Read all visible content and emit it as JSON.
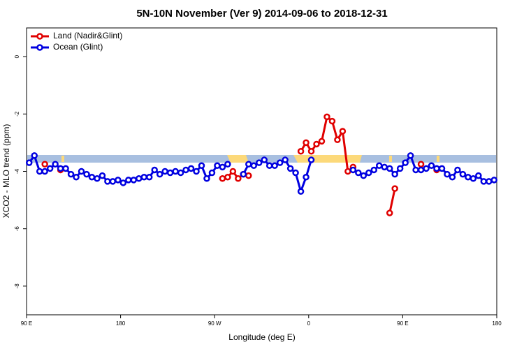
{
  "chart_data": {
    "type": "line",
    "title": "5N-10N November (Ver 9)   2014-09-06 to 2018-12-31",
    "x_label": "Longitude (deg E)",
    "y_label": "XCO2 - MLO trend (ppm)",
    "xlim": [
      90,
      540
    ],
    "ylim": [
      -9,
      1
    ],
    "xticks": [
      {
        "value": 90,
        "label": "90 E"
      },
      180,
      {
        "value": 270,
        "label": "90 W"
      },
      {
        "value": 360,
        "label": "0"
      },
      {
        "value": 450,
        "label": "90 E"
      },
      {
        "value": 540,
        "label": "180"
      }
    ],
    "yticks": [
      0,
      -2,
      -4,
      -6,
      -8
    ],
    "legend": "top-left",
    "x": [
      92.5,
      97.5,
      102.5,
      107.5,
      112.5,
      117.5,
      122.5,
      127.5,
      132.5,
      137.5,
      142.5,
      147.5,
      152.5,
      157.5,
      162.5,
      167.5,
      172.5,
      177.5,
      182.5,
      187.5,
      192.5,
      197.5,
      202.5,
      207.5,
      212.5,
      217.5,
      222.5,
      227.5,
      232.5,
      237.5,
      242.5,
      247.5,
      252.5,
      257.5,
      262.5,
      267.5,
      272.5,
      277.5,
      282.5,
      287.5,
      292.5,
      297.5,
      302.5,
      307.5,
      312.5,
      317.5,
      322.5,
      327.5,
      332.5,
      337.5,
      342.5,
      347.5,
      352.5,
      357.5,
      362.5,
      367.5,
      372.5,
      377.5,
      382.5,
      387.5,
      392.5,
      397.5,
      402.5,
      407.5,
      412.5,
      417.5,
      422.5,
      427.5,
      432.5,
      437.5,
      442.5,
      447.5,
      452.5,
      457.5,
      462.5,
      467.5,
      472.5,
      477.5,
      482.5,
      487.5,
      492.5,
      497.5,
      502.5,
      507.5,
      512.5,
      517.5,
      522.5,
      527.5,
      532.5,
      537.5
    ],
    "series": [
      {
        "name": "Land (Nadir&Glint)",
        "color": "#e00000",
        "values": [
          null,
          null,
          null,
          -3.75,
          null,
          null,
          -3.95,
          null,
          null,
          null,
          null,
          null,
          null,
          null,
          null,
          null,
          null,
          null,
          null,
          null,
          null,
          null,
          null,
          null,
          null,
          null,
          null,
          null,
          null,
          null,
          null,
          null,
          null,
          null,
          null,
          null,
          null,
          -4.25,
          -4.2,
          -4.0,
          -4.25,
          -4.1,
          -4.15,
          null,
          null,
          null,
          null,
          null,
          null,
          null,
          null,
          null,
          -3.3,
          -3.0,
          -3.3,
          -3.05,
          -2.95,
          -2.1,
          -2.25,
          -2.9,
          -2.6,
          -4.0,
          -3.85,
          null,
          null,
          null,
          null,
          null,
          null,
          -5.45,
          -4.6,
          null,
          null,
          null,
          null,
          -3.75,
          null,
          null,
          -3.95,
          null,
          null,
          null,
          null,
          null,
          null,
          null,
          null,
          null,
          null,
          null
        ]
      },
      {
        "name": "Ocean (Glint)",
        "color": "#0000e0",
        "values": [
          -3.7,
          -3.45,
          -4.0,
          -4.0,
          -3.9,
          -3.75,
          -3.9,
          -3.9,
          -4.1,
          -4.2,
          -4.0,
          -4.1,
          -4.2,
          -4.25,
          -4.15,
          -4.35,
          -4.35,
          -4.3,
          -4.4,
          -4.3,
          -4.3,
          -4.25,
          -4.2,
          -4.2,
          -3.95,
          -4.1,
          -4.0,
          -4.05,
          -4.0,
          -4.05,
          -3.95,
          -3.9,
          -4.0,
          -3.8,
          -4.25,
          -4.05,
          -3.8,
          -3.85,
          -3.75,
          null,
          null,
          -4.1,
          -3.75,
          -3.8,
          -3.7,
          -3.6,
          -3.8,
          -3.8,
          -3.7,
          -3.6,
          -3.9,
          -4.05,
          -4.7,
          -4.2,
          -3.6,
          null,
          null,
          null,
          null,
          null,
          null,
          null,
          -3.95,
          -4.05,
          -4.15,
          -4.05,
          -3.95,
          -3.8,
          -3.85,
          -3.9,
          -4.1,
          -3.9,
          -3.7,
          -3.45,
          -3.95,
          -3.95,
          -3.9,
          -3.8,
          -3.9,
          -3.9,
          -4.1,
          -4.2,
          -3.95,
          -4.1,
          -4.2,
          -4.25,
          -4.15,
          -4.35,
          -4.35,
          -4.3
        ]
      }
    ]
  }
}
